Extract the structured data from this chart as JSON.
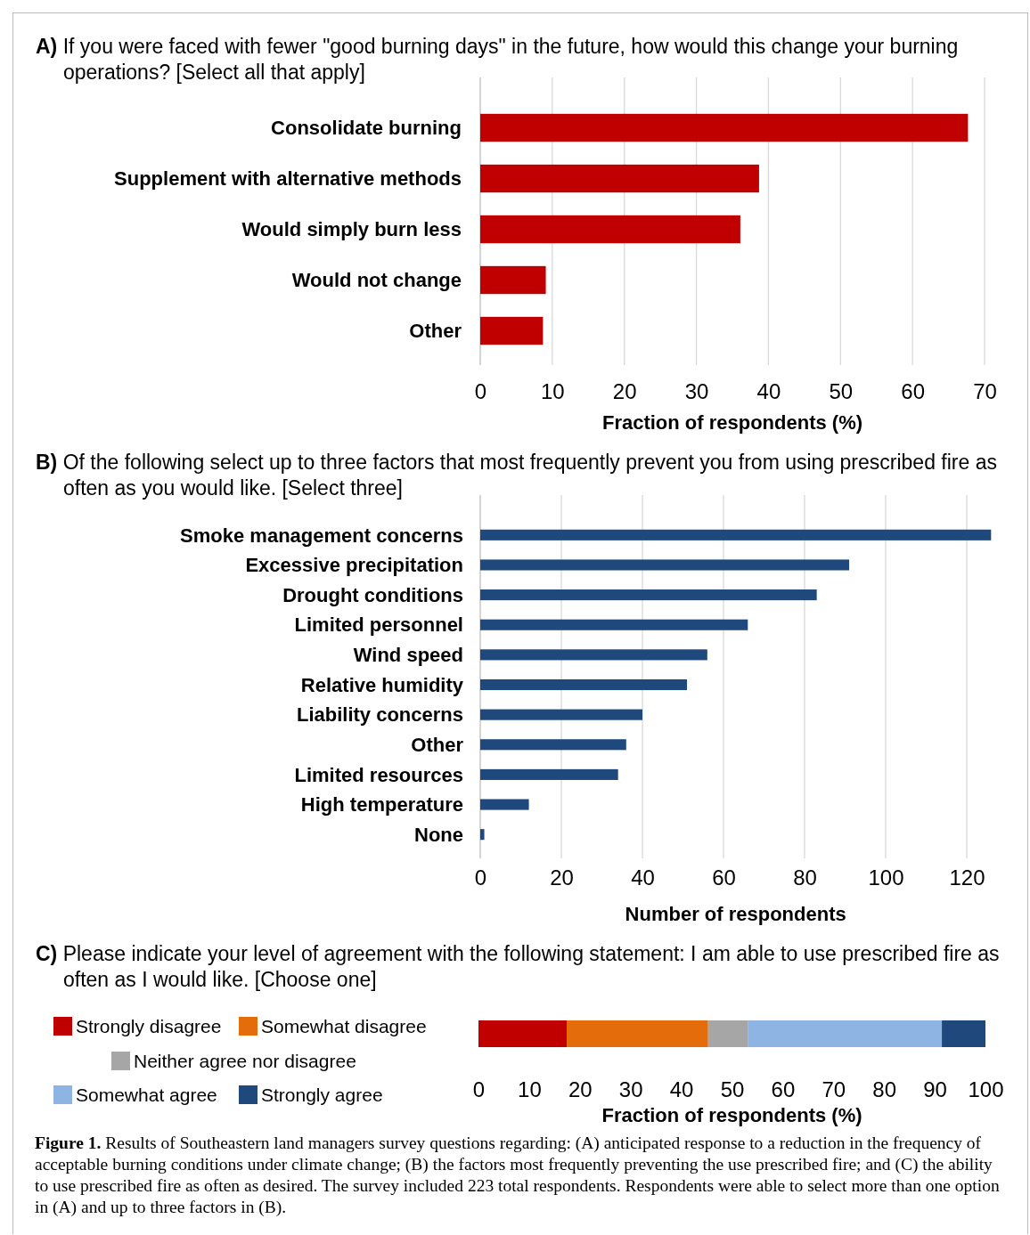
{
  "chart_data": [
    {
      "type": "bar",
      "orientation": "horizontal",
      "title": "A) If you were faced with fewer \"good burning days\" in the future, how would this change your burning operations? [Select all that apply]",
      "xlabel": "Fraction of respondents (%)",
      "categories": [
        "Consolidate burning",
        "Supplement with alternative methods",
        "Would simply burn less",
        "Would not change",
        "Other"
      ],
      "values": [
        67.7,
        38.7,
        36.1,
        9.1,
        8.7
      ],
      "color": "#c00000",
      "xlim": [
        0,
        70
      ],
      "xticks": [
        0,
        10,
        20,
        30,
        40,
        50,
        60,
        70
      ],
      "grid": "x"
    },
    {
      "type": "bar",
      "orientation": "horizontal",
      "title": "B) Of the following select up to three factors that most frequently prevent you from using prescribed fire as often as you would like. [Select three]",
      "xlabel": "Number of respondents",
      "categories": [
        "Smoke management concerns",
        "Excessive precipitation",
        "Drought conditions",
        "Limited personnel",
        "Wind speed",
        "Relative humidity",
        "Liability concerns",
        "Other",
        "Limited resources",
        "High temperature",
        "None"
      ],
      "values": [
        126,
        91,
        83,
        66,
        56,
        51,
        40,
        36,
        34,
        12,
        1
      ],
      "color": "#1f497d",
      "xlim": [
        0,
        126
      ],
      "xticks": [
        0,
        20,
        40,
        60,
        80,
        100,
        120
      ],
      "grid": "x"
    },
    {
      "type": "bar",
      "orientation": "horizontal",
      "stacked": true,
      "title": "C) Please indicate your level of agreement with the following statement: I am able to use prescribed fire as often as I would like. [Choose one]",
      "xlabel": "Fraction of respondents (%)",
      "categories": [
        null
      ],
      "series": [
        {
          "name": "Strongly disagree",
          "color": "#c00000",
          "values": [
            17.4
          ]
        },
        {
          "name": "Somewhat disagree",
          "color": "#e46c0a",
          "values": [
            27.9
          ]
        },
        {
          "name": "Neither agree nor disagree",
          "color": "#a6a6a6",
          "values": [
            7.8
          ]
        },
        {
          "name": "Somewhat agree",
          "color": "#8eb4e3",
          "values": [
            38.3
          ]
        },
        {
          "name": "Strongly agree",
          "color": "#1f497d",
          "values": [
            8.6
          ]
        }
      ],
      "xlim": [
        0,
        100
      ],
      "xticks": [
        0,
        10,
        20,
        30,
        40,
        50,
        60,
        70,
        80,
        90,
        100
      ],
      "legend": "left",
      "annotations": [
        "Figure 1. Results of Southeastern land managers survey questions regarding: (A) anticipated response to a reduction in the frequency of acceptable burning conditions under climate change; (B) the factors most frequently preventing the use prescribed fire; and (C) the ability to use prescribed fire as often as desired. The survey included 223 total respondents. Respondents were able to select more than one option in (A) and up to three factors in (B)."
      ]
    }
  ]
}
